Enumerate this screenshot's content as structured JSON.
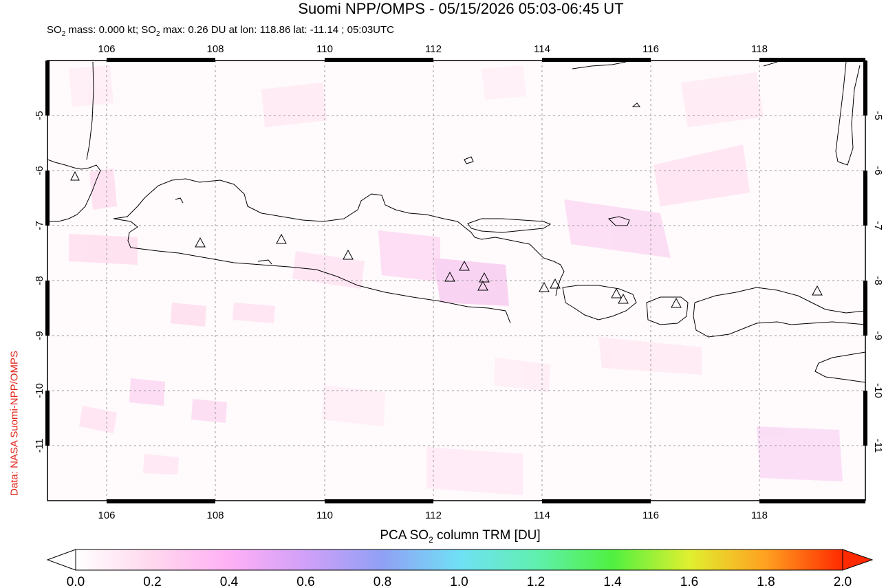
{
  "header": {
    "title": "Suomi NPP/OMPS - 05/15/2026 05:03-06:45 UT",
    "subtitle_prefix": "SO",
    "subtitle_sub": "2",
    "subtitle_mid": " mass: 0.000 kt; SO",
    "subtitle_sub2": "2",
    "subtitle_suffix": " max: 0.26 DU at lon: 118.86 lat: -11.14 ; 05:03UTC"
  },
  "credit": "Data: NASA Suomi-NPP/OMPS",
  "map": {
    "lon_ticks": [
      "106",
      "108",
      "110",
      "112",
      "114",
      "116",
      "118"
    ],
    "lat_ticks": [
      "-5",
      "-6",
      "-7",
      "-8",
      "-9",
      "-10",
      "-11"
    ],
    "volcano_icon": "triangle-volcano-icon"
  },
  "colorbar": {
    "label_prefix": "PCA SO",
    "label_sub": "2",
    "label_suffix": " column TRM [DU]",
    "ticks": [
      "0.0",
      "0.2",
      "0.4",
      "0.6",
      "0.8",
      "1.0",
      "1.2",
      "1.4",
      "1.6",
      "1.8",
      "2.0"
    ],
    "min_color": "#ffffff",
    "max_color": "#ff2a00"
  }
}
